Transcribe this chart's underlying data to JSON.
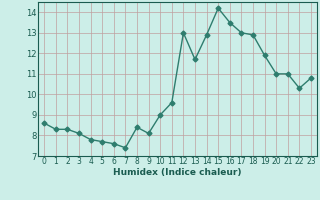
{
  "x": [
    0,
    1,
    2,
    3,
    4,
    5,
    6,
    7,
    8,
    9,
    10,
    11,
    12,
    13,
    14,
    15,
    16,
    17,
    18,
    19,
    20,
    21,
    22,
    23
  ],
  "y": [
    8.6,
    8.3,
    8.3,
    8.1,
    7.8,
    7.7,
    7.6,
    7.4,
    8.4,
    8.1,
    9.0,
    9.6,
    13.0,
    11.7,
    12.9,
    14.2,
    13.5,
    13.0,
    12.9,
    11.9,
    11.0,
    11.0,
    10.3,
    10.8
  ],
  "xlabel": "Humidex (Indice chaleur)",
  "ylim": [
    7,
    14.5
  ],
  "xlim": [
    -0.5,
    23.5
  ],
  "yticks": [
    7,
    8,
    9,
    10,
    11,
    12,
    13,
    14
  ],
  "xticks": [
    0,
    1,
    2,
    3,
    4,
    5,
    6,
    7,
    8,
    9,
    10,
    11,
    12,
    13,
    14,
    15,
    16,
    17,
    18,
    19,
    20,
    21,
    22,
    23
  ],
  "line_color": "#2e7d6e",
  "bg_color": "#cceee8",
  "grid_color": "#c0a0a0",
  "marker": "D",
  "markersize": 2.5,
  "linewidth": 1.0
}
